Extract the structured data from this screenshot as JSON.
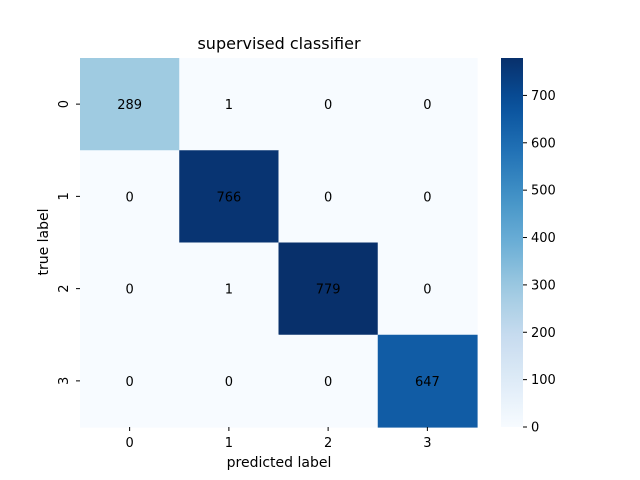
{
  "chart_data": {
    "type": "heatmap",
    "title": "supervised classifier",
    "xlabel": "predicted label",
    "ylabel": "true label",
    "x_categories": [
      "0",
      "1",
      "2",
      "3"
    ],
    "y_categories": [
      "0",
      "1",
      "2",
      "3"
    ],
    "values": [
      [
        289,
        1,
        0,
        0
      ],
      [
        0,
        766,
        0,
        0
      ],
      [
        0,
        1,
        779,
        0
      ],
      [
        0,
        0,
        0,
        647
      ]
    ],
    "annotations": [
      [
        "289",
        "1",
        "0",
        "0"
      ],
      [
        "0",
        "766",
        "0",
        "0"
      ],
      [
        "0",
        "1",
        "779",
        "0"
      ],
      [
        "0",
        "0",
        "0",
        "647"
      ]
    ],
    "colormap": "Blues",
    "vmin": 0,
    "vmax": 779,
    "colorbar_ticks": [
      0,
      100,
      200,
      300,
      400,
      500,
      600,
      700
    ],
    "grid": false
  }
}
